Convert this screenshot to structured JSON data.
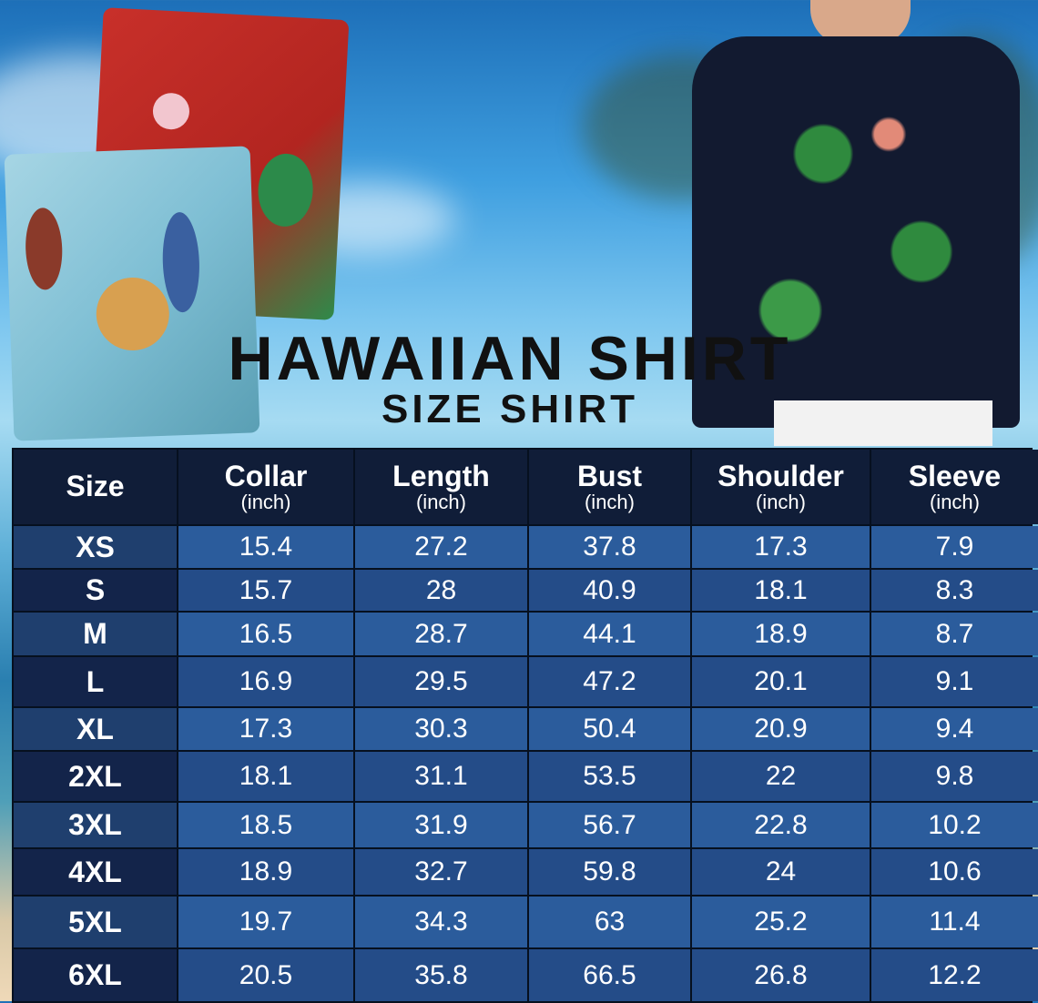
{
  "title": "HAWAIIAN SHIRT",
  "subtitle": "SIZE SHIRT",
  "colors": {
    "header": "#101d38",
    "row_light": "#2b5c9c",
    "row_dark": "#244c88",
    "size_col": "#13244a"
  },
  "table": {
    "headers": [
      {
        "label": "Size",
        "unit": ""
      },
      {
        "label": "Collar",
        "unit": "(inch)"
      },
      {
        "label": "Length",
        "unit": "(inch)"
      },
      {
        "label": "Bust",
        "unit": "(inch)"
      },
      {
        "label": "Shoulder",
        "unit": "(inch)"
      },
      {
        "label": "Sleeve",
        "unit": "(inch)"
      }
    ],
    "rows": [
      [
        "XS",
        "15.4",
        "27.2",
        "37.8",
        "17.3",
        "7.9"
      ],
      [
        "S",
        "15.7",
        "28",
        "40.9",
        "18.1",
        "8.3"
      ],
      [
        "M",
        "16.5",
        "28.7",
        "44.1",
        "18.9",
        "8.7"
      ],
      [
        "L",
        "16.9",
        "29.5",
        "47.2",
        "20.1",
        "9.1"
      ],
      [
        "XL",
        "17.3",
        "30.3",
        "50.4",
        "20.9",
        "9.4"
      ],
      [
        "2XL",
        "18.1",
        "31.1",
        "53.5",
        "22",
        "9.8"
      ],
      [
        "3XL",
        "18.5",
        "31.9",
        "56.7",
        "22.8",
        "10.2"
      ],
      [
        "4XL",
        "18.9",
        "32.7",
        "59.8",
        "24",
        "10.6"
      ],
      [
        "5XL",
        "19.7",
        "34.3",
        "63",
        "25.2",
        "11.4"
      ],
      [
        "6XL",
        "20.5",
        "35.8",
        "66.5",
        "26.8",
        "12.2"
      ]
    ]
  }
}
